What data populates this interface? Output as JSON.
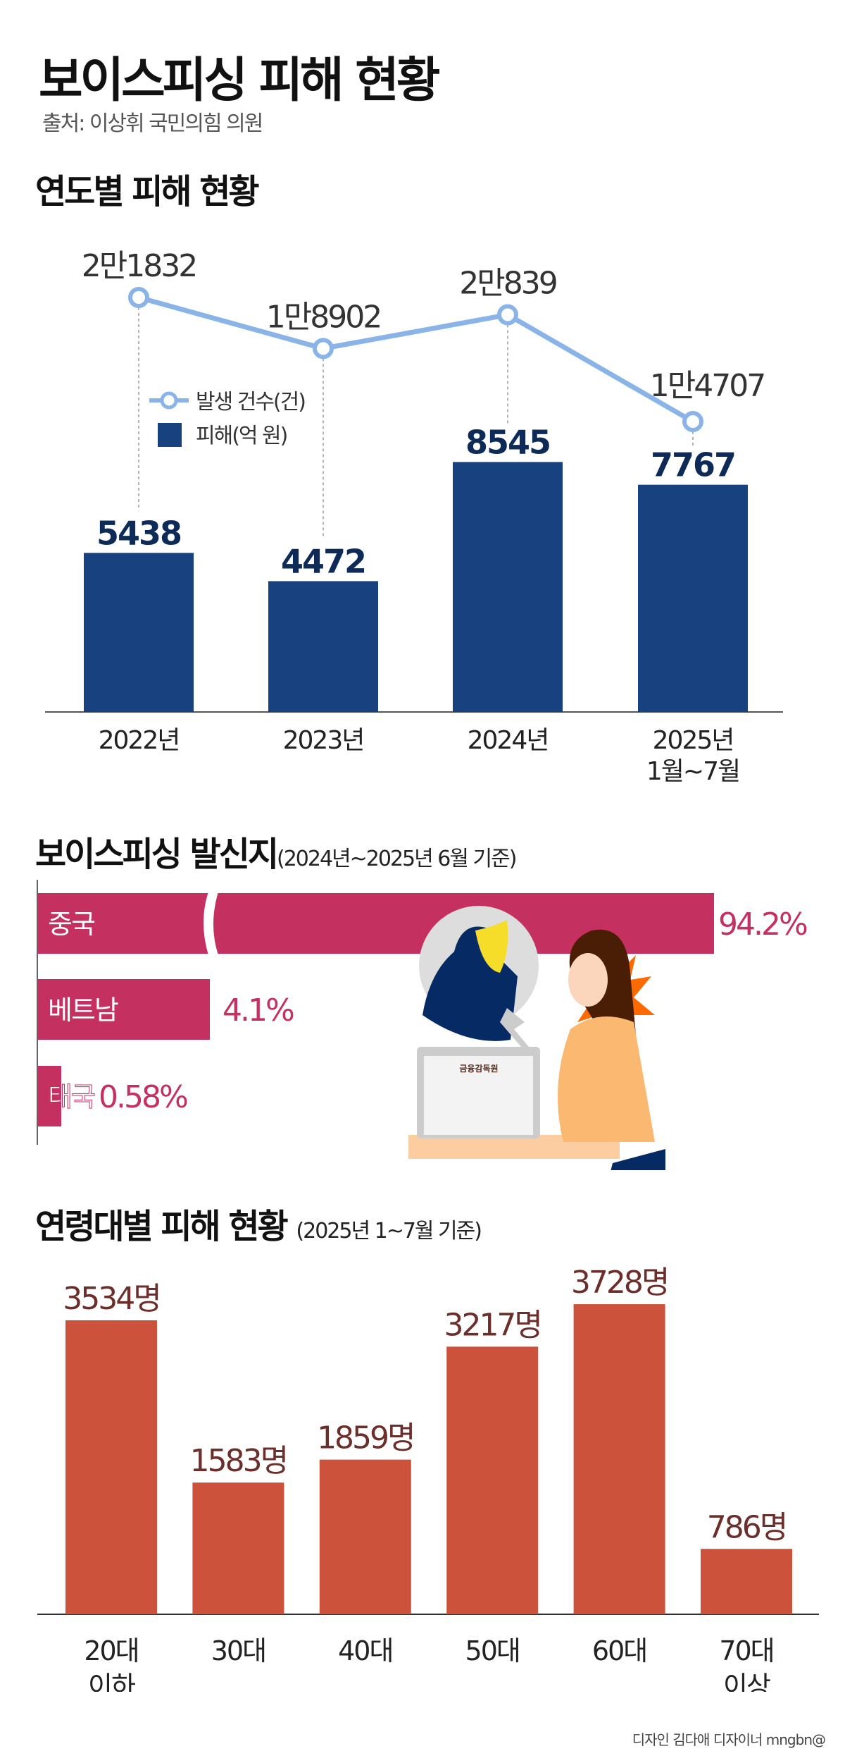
{
  "title": "보이스피싱 피해 현황",
  "source": "출처: 이상휘 국민의힘 의원",
  "colors": {
    "navy": "#18427f",
    "line": "#8ab4e8",
    "pink": "#c4305f",
    "orange": "#cd523b",
    "brown": "#6b2e2a",
    "text": "#333333"
  },
  "chart_data": [
    {
      "type": "bar+line",
      "title": "연도별 피해 현황",
      "categories": [
        "2022년",
        "2023년",
        "2024년",
        "2025년\n1월~7월"
      ],
      "series": [
        {
          "name": "발생 건수(건)",
          "type": "line",
          "values": [
            21832,
            18902,
            20839,
            14707
          ],
          "labels": [
            "2만1832",
            "1만8902",
            "2만839",
            "1만4707"
          ]
        },
        {
          "name": "피해(억 원)",
          "type": "bar",
          "values": [
            5438,
            4472,
            8545,
            7767
          ],
          "labels": [
            "5438",
            "4472",
            "8545",
            "7767"
          ]
        }
      ],
      "legend": "top-left"
    },
    {
      "type": "bar",
      "orientation": "horizontal",
      "title": "보이스피싱 발신지",
      "subtitle": "(2024년~2025년 6월 기준)",
      "categories": [
        "중국",
        "베트남",
        "태국"
      ],
      "values": [
        94.2,
        4.1,
        0.58
      ],
      "labels": [
        "94.2%",
        "4.1%",
        "0.58%"
      ],
      "axis_break_on_first_bar": true,
      "illustration_text": "금융감독원"
    },
    {
      "type": "bar",
      "title": "연령대별 피해 현황",
      "subtitle": "(2025년 1~7월 기준)",
      "categories": [
        "20대\n이하",
        "30대",
        "40대",
        "50대",
        "60대",
        "70대\n이상"
      ],
      "values": [
        3534,
        1583,
        1859,
        3217,
        3728,
        786
      ],
      "labels": [
        "3534명",
        "1583명",
        "1859명",
        "3217명",
        "3728명",
        "786명"
      ]
    }
  ],
  "credit": "디자인 김다애 디자이너 mngbn@"
}
